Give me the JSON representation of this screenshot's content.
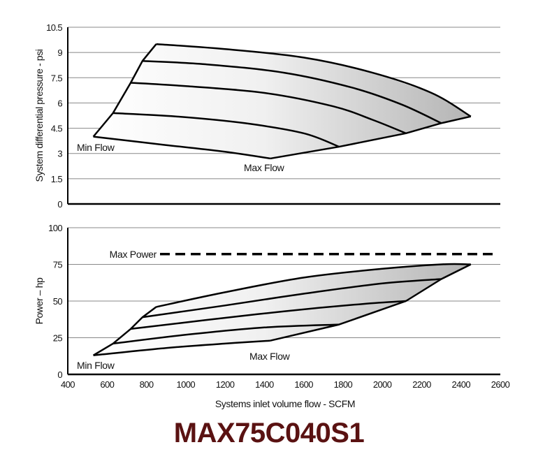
{
  "title": "MAX75C040S1",
  "colors": {
    "title": "#5a1212",
    "grid": "#888888",
    "line": "#000000",
    "fill_light": "#ffffff",
    "fill_dark": "#b4b4b4"
  },
  "chart_data": [
    {
      "type": "line",
      "name": "pressure",
      "ylabel": "System differential pressure - psi",
      "xlabel": "",
      "xlim": [
        400,
        2600
      ],
      "ylim": [
        0,
        10.5
      ],
      "yticks": [
        "0",
        "1.5",
        "3",
        "4.5",
        "6",
        "7.5",
        "9",
        "10.5"
      ],
      "grid": true,
      "min_flow_label": "Min Flow",
      "max_flow_label": "Max Flow",
      "envelope": {
        "min_flow_line": [
          [
            530,
            4.0
          ],
          [
            630,
            5.4
          ],
          [
            720,
            7.2
          ],
          [
            780,
            8.5
          ],
          [
            850,
            9.5
          ]
        ],
        "max_flow_line": [
          [
            1430,
            2.7
          ],
          [
            1780,
            3.4
          ],
          [
            2120,
            4.2
          ],
          [
            2300,
            4.8
          ],
          [
            2450,
            5.2
          ]
        ]
      },
      "series": [
        {
          "x": [
            530,
            900,
            1200,
            1430
          ],
          "y": [
            4.0,
            3.5,
            3.1,
            2.7
          ]
        },
        {
          "x": [
            630,
            950,
            1300,
            1600,
            1780
          ],
          "y": [
            5.4,
            5.2,
            4.8,
            4.2,
            3.4
          ]
        },
        {
          "x": [
            720,
            1000,
            1400,
            1750,
            1950,
            2120
          ],
          "y": [
            7.2,
            7.0,
            6.6,
            5.8,
            5.0,
            4.2
          ]
        },
        {
          "x": [
            780,
            1100,
            1500,
            1850,
            2100,
            2300
          ],
          "y": [
            8.5,
            8.3,
            7.8,
            6.9,
            5.9,
            4.8
          ]
        },
        {
          "x": [
            850,
            1200,
            1600,
            1950,
            2250,
            2450
          ],
          "y": [
            9.5,
            9.2,
            8.7,
            7.8,
            6.6,
            5.2
          ]
        }
      ]
    },
    {
      "type": "line",
      "name": "power",
      "ylabel": "Power – hp",
      "xlabel": "Systems inlet volume flow - SCFM",
      "xlim": [
        400,
        2600
      ],
      "ylim": [
        0,
        100
      ],
      "xticks": [
        "400",
        "600",
        "800",
        "1000",
        "1200",
        "1400",
        "1600",
        "1800",
        "2000",
        "2200",
        "2400",
        "2600"
      ],
      "yticks": [
        "0",
        "25",
        "50",
        "75",
        "100"
      ],
      "grid": true,
      "min_flow_label": "Min Flow",
      "max_flow_label": "Max Flow",
      "max_power_label": "Max Power",
      "max_power": 82,
      "envelope": {
        "min_flow_line": [
          [
            530,
            13
          ],
          [
            630,
            21
          ],
          [
            720,
            31
          ],
          [
            780,
            39
          ],
          [
            850,
            46
          ]
        ],
        "max_flow_line": [
          [
            1430,
            23
          ],
          [
            1780,
            34
          ],
          [
            2120,
            50
          ],
          [
            2300,
            65
          ],
          [
            2450,
            75
          ]
        ]
      },
      "series": [
        {
          "x": [
            530,
            900,
            1200,
            1430
          ],
          "y": [
            13,
            18,
            21,
            23
          ]
        },
        {
          "x": [
            630,
            1000,
            1400,
            1780
          ],
          "y": [
            21,
            27,
            32,
            34
          ]
        },
        {
          "x": [
            720,
            1100,
            1500,
            1900,
            2120
          ],
          "y": [
            31,
            37,
            43,
            48,
            50
          ]
        },
        {
          "x": [
            780,
            1200,
            1600,
            2000,
            2300
          ],
          "y": [
            39,
            47,
            55,
            62,
            65
          ]
        },
        {
          "x": [
            850,
            1200,
            1600,
            2000,
            2300,
            2450
          ],
          "y": [
            46,
            56,
            66,
            72,
            75,
            75
          ]
        }
      ]
    }
  ]
}
